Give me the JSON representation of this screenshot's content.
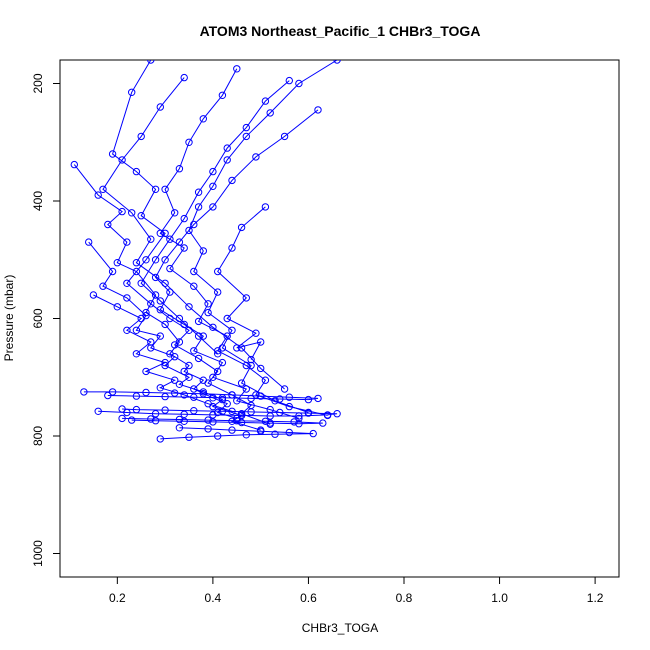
{
  "chart_data": {
    "type": "scatter",
    "title": "ATOM3 Northeast_Pacific_1 CHBr3_TOGA",
    "xlabel": "CHBr3_TOGA",
    "ylabel": "Pressure (mbar)",
    "xlim": [
      0.08,
      1.25
    ],
    "ylim": [
      1040,
      160
    ],
    "y_reversed": true,
    "x_ticks": [
      0.2,
      0.4,
      0.6,
      0.8,
      1.0,
      1.2
    ],
    "x_tick_labels": [
      "0.2",
      "0.4",
      "0.6",
      "0.8",
      "1.0",
      "1.2"
    ],
    "y_ticks": [
      200,
      400,
      600,
      800,
      1000
    ],
    "y_tick_labels": [
      "200",
      "400",
      "600",
      "800",
      "1000"
    ],
    "grid": false,
    "legend": "none",
    "series_color": "#0000ff",
    "marker": "open-circle",
    "connected": true,
    "series": [
      {
        "x": [
          0.11,
          0.16,
          0.21,
          0.18,
          0.22,
          0.2,
          0.24,
          0.28,
          0.26,
          0.3,
          0.33,
          0.31,
          0.35,
          0.34,
          0.38,
          0.36,
          0.4,
          0.43,
          0.41,
          0.45
        ],
        "y": [
          338,
          390,
          418,
          440,
          470,
          505,
          520,
          560,
          590,
          610,
          640,
          660,
          680,
          690,
          705,
          720,
          735,
          745,
          760,
          770
        ]
      },
      {
        "x": [
          0.14,
          0.19,
          0.17,
          0.22,
          0.26,
          0.24,
          0.29,
          0.27,
          0.32,
          0.3,
          0.35,
          0.33,
          0.38,
          0.42,
          0.4,
          0.46,
          0.44,
          0.5
        ],
        "y": [
          470,
          520,
          545,
          565,
          595,
          620,
          630,
          650,
          665,
          680,
          700,
          712,
          725,
          738,
          750,
          765,
          775,
          790
        ]
      },
      {
        "x": [
          0.27,
          0.23,
          0.19,
          0.24,
          0.28,
          0.25,
          0.3,
          0.26,
          0.22,
          0.27,
          0.31,
          0.35,
          0.32,
          0.37,
          0.41,
          0.39,
          0.44,
          0.48,
          0.46,
          0.52
        ],
        "y": [
          160,
          215,
          320,
          350,
          380,
          425,
          455,
          500,
          540,
          575,
          600,
          620,
          645,
          668,
          690,
          710,
          730,
          748,
          762,
          780
        ]
      },
      {
        "x": [
          0.62,
          0.55,
          0.49,
          0.44,
          0.4,
          0.36,
          0.33,
          0.3,
          0.28,
          0.31,
          0.29,
          0.34,
          0.38,
          0.36,
          0.42,
          0.4,
          0.47,
          0.45,
          0.52,
          0.58
        ],
        "y": [
          245,
          290,
          325,
          365,
          410,
          440,
          470,
          500,
          530,
          555,
          585,
          610,
          630,
          655,
          675,
          700,
          720,
          740,
          755,
          770
        ]
      },
      {
        "x": [
          0.45,
          0.42,
          0.38,
          0.35,
          0.33,
          0.3,
          0.32,
          0.29,
          0.34,
          0.31,
          0.36,
          0.39,
          0.37,
          0.43,
          0.41,
          0.47,
          0.51,
          0.49,
          0.56,
          0.64
        ],
        "y": [
          175,
          220,
          260,
          300,
          345,
          380,
          420,
          455,
          480,
          515,
          545,
          575,
          605,
          630,
          655,
          680,
          705,
          730,
          750,
          765
        ]
      },
      {
        "x": [
          0.66,
          0.58,
          0.52,
          0.47,
          0.43,
          0.4,
          0.37,
          0.35,
          0.38,
          0.36,
          0.41,
          0.39,
          0.44,
          0.42,
          0.48,
          0.46,
          0.53,
          0.6
        ],
        "y": [
          160,
          200,
          250,
          290,
          330,
          375,
          410,
          450,
          485,
          520,
          555,
          590,
          620,
          650,
          680,
          710,
          740,
          760
        ]
      },
      {
        "x": [
          0.13,
          0.19,
          0.26,
          0.32,
          0.38,
          0.44,
          0.5,
          0.56,
          0.62,
          0.6,
          0.54,
          0.48,
          0.42,
          0.36,
          0.3,
          0.24,
          0.18
        ],
        "y": [
          725,
          725,
          726,
          727,
          728,
          730,
          732,
          734,
          736,
          738,
          737,
          736,
          735,
          734,
          733,
          732,
          731
        ]
      },
      {
        "x": [
          0.16,
          0.22,
          0.28,
          0.34,
          0.4,
          0.46,
          0.52,
          0.58,
          0.64,
          0.66,
          0.6,
          0.54,
          0.48,
          0.42,
          0.36,
          0.3,
          0.24,
          0.21
        ],
        "y": [
          758,
          760,
          762,
          763,
          764,
          765,
          766,
          766,
          764,
          762,
          761,
          760,
          759,
          758,
          757,
          756,
          755,
          754
        ]
      },
      {
        "x": [
          0.21,
          0.27,
          0.33,
          0.39,
          0.45,
          0.51,
          0.57,
          0.63,
          0.58,
          0.52,
          0.46,
          0.4,
          0.34,
          0.28,
          0.23
        ],
        "y": [
          770,
          771,
          772,
          773,
          774,
          775,
          776,
          778,
          779,
          778,
          777,
          776,
          775,
          774,
          773
        ]
      },
      {
        "x": [
          0.29,
          0.35,
          0.41,
          0.47,
          0.53,
          0.61,
          0.56,
          0.5,
          0.44,
          0.39,
          0.33
        ],
        "y": [
          805,
          802,
          800,
          798,
          797,
          796,
          794,
          792,
          790,
          788,
          786
        ]
      },
      {
        "x": [
          0.34,
          0.29,
          0.25,
          0.21,
          0.17,
          0.23,
          0.27,
          0.24,
          0.3,
          0.35,
          0.4,
          0.46,
          0.5,
          0.55
        ],
        "y": [
          190,
          240,
          290,
          330,
          380,
          420,
          465,
          505,
          540,
          580,
          615,
          650,
          685,
          720
        ]
      },
      {
        "x": [
          0.56,
          0.51,
          0.47,
          0.43,
          0.4,
          0.37,
          0.34,
          0.31,
          0.28,
          0.25,
          0.29,
          0.33,
          0.37,
          0.41
        ],
        "y": [
          195,
          230,
          275,
          310,
          350,
          385,
          430,
          465,
          500,
          540,
          570,
          600,
          630,
          660
        ]
      },
      {
        "x": [
          0.15,
          0.2,
          0.25,
          0.22,
          0.27,
          0.24,
          0.3,
          0.26,
          0.32,
          0.29,
          0.34,
          0.39,
          0.44
        ],
        "y": [
          560,
          580,
          600,
          620,
          640,
          660,
          675,
          690,
          705,
          718,
          730,
          745,
          758
        ]
      },
      {
        "x": [
          0.51,
          0.46,
          0.44,
          0.41,
          0.47,
          0.43,
          0.49,
          0.45,
          0.5,
          0.48
        ],
        "y": [
          410,
          445,
          480,
          520,
          565,
          600,
          625,
          650,
          640,
          670
        ]
      }
    ]
  }
}
